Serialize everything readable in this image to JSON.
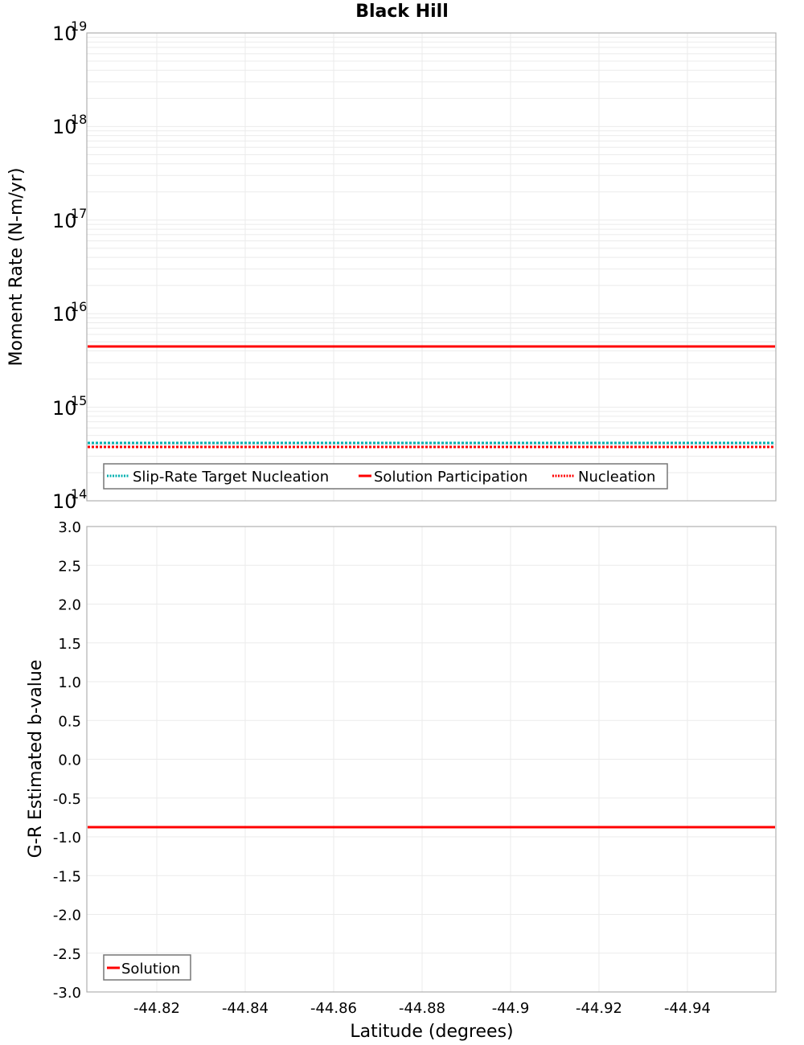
{
  "title": "Black Hill",
  "colors": {
    "solution": "#ff0000",
    "target": "#00b0b0",
    "nucleation": "#ff0000",
    "grid": "#ebebeb",
    "frame": "#b0b0b0"
  },
  "x_axis": {
    "label": "Latitude (degrees)",
    "ticks": [
      "-44.82",
      "-44.84",
      "-44.86",
      "-44.88",
      "-44.9",
      "-44.92",
      "-44.94"
    ]
  },
  "top_plot": {
    "ylabel": "Moment Rate (N-m/yr)",
    "y_ticks": [
      {
        "base": "10",
        "exp": "19"
      },
      {
        "base": "10",
        "exp": "18"
      },
      {
        "base": "10",
        "exp": "17"
      },
      {
        "base": "10",
        "exp": "16"
      },
      {
        "base": "10",
        "exp": "15"
      },
      {
        "base": "10",
        "exp": "14"
      }
    ],
    "legend": [
      "Slip-Rate Target Nucleation",
      "Solution Participation",
      "Nucleation"
    ]
  },
  "bottom_plot": {
    "ylabel": "G-R Estimated b-value",
    "y_ticks": [
      "3.0",
      "2.5",
      "2.0",
      "1.5",
      "1.0",
      "0.5",
      "0.0",
      "-0.5",
      "-1.0",
      "-1.5",
      "-2.0",
      "-2.5",
      "-3.0"
    ],
    "legend": [
      "Solution"
    ]
  },
  "chart_data": [
    {
      "type": "line",
      "title": "Black Hill",
      "xlabel": "Latitude (degrees)",
      "ylabel": "Moment Rate (N-m/yr)",
      "yscale": "log",
      "xlim": [
        -44.804,
        -44.96
      ],
      "ylim": [
        100000000000000.0,
        1e+19
      ],
      "x_ticks": [
        -44.82,
        -44.84,
        -44.86,
        -44.88,
        -44.9,
        -44.92,
        -44.94
      ],
      "grid": true,
      "legend_position": "lower left",
      "x": [
        -44.804,
        -44.885,
        -44.96
      ],
      "series": [
        {
          "name": "Slip-Rate Target Nucleation",
          "style": "dotted",
          "color": "#00b0b0",
          "values": [
            420000000000000.0,
            420000000000000.0,
            420000000000000.0
          ]
        },
        {
          "name": "Solution Participation",
          "style": "solid",
          "color": "#ff0000",
          "values": [
            4450000000000000.0,
            4450000000000000.0,
            4450000000000000.0
          ]
        },
        {
          "name": "Nucleation",
          "style": "dotted",
          "color": "#ff0000",
          "values": [
            380000000000000.0,
            380000000000000.0,
            380000000000000.0
          ]
        }
      ]
    },
    {
      "type": "line",
      "xlabel": "Latitude (degrees)",
      "ylabel": "G-R Estimated b-value",
      "xlim": [
        -44.804,
        -44.96
      ],
      "ylim": [
        -3.0,
        3.0
      ],
      "x_ticks": [
        -44.82,
        -44.84,
        -44.86,
        -44.88,
        -44.9,
        -44.92,
        -44.94
      ],
      "y_ticks": [
        3.0,
        2.5,
        2.0,
        1.5,
        1.0,
        0.5,
        0.0,
        -0.5,
        -1.0,
        -1.5,
        -2.0,
        -2.5,
        -3.0
      ],
      "grid": true,
      "legend_position": "lower left",
      "x": [
        -44.804,
        -44.885,
        -44.96
      ],
      "series": [
        {
          "name": "Solution",
          "style": "solid",
          "color": "#ff0000",
          "values": [
            -0.88,
            -0.88,
            -0.88
          ]
        }
      ]
    }
  ]
}
